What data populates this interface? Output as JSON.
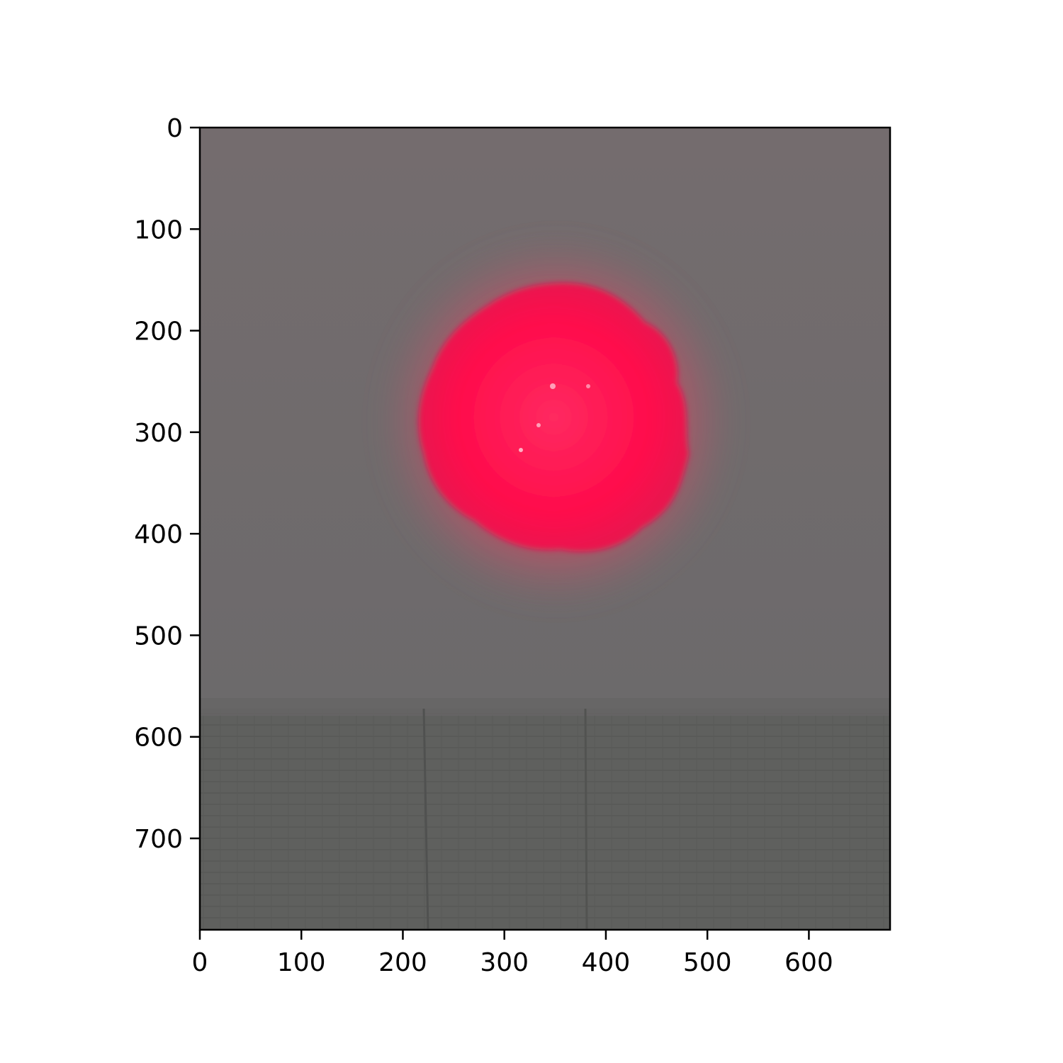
{
  "image": {
    "subject": "laser-spot-photo",
    "width_units": 680,
    "height_units": 790,
    "spot_center": [
      350,
      290
    ],
    "colors": {
      "wall": "#6f6a6b",
      "wall_top": "#726b6d",
      "floor": "#5e5f5d",
      "spot_core": "#ff0f4e",
      "spot_halo": "#e23a5e"
    }
  },
  "axes": {
    "x_ticks": [
      "0",
      "100",
      "200",
      "300",
      "400",
      "500",
      "600"
    ],
    "y_ticks": [
      "0",
      "100",
      "200",
      "300",
      "400",
      "500",
      "600",
      "700"
    ],
    "x_tick_values": [
      0,
      100,
      200,
      300,
      400,
      500,
      600
    ],
    "y_tick_values": [
      0,
      100,
      200,
      300,
      400,
      500,
      600,
      700
    ]
  }
}
